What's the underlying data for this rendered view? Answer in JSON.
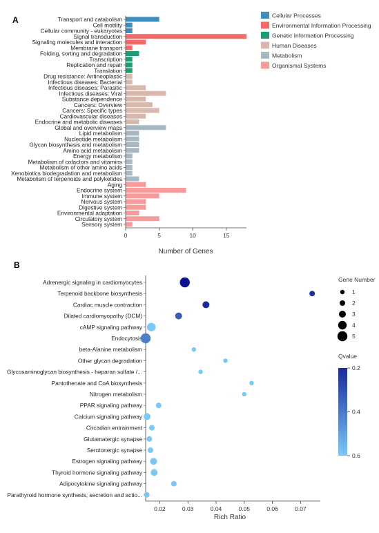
{
  "chart_data": [
    {
      "type": "bar",
      "panel_label": "A",
      "orientation": "horizontal",
      "xlabel": "Number of Genes",
      "xlim": [
        0,
        18
      ],
      "xticks": [
        0,
        5,
        10,
        15
      ],
      "legend": [
        {
          "name": "Cellular Processes",
          "color": "#3a8fbf"
        },
        {
          "name": "Environmental Information Processing",
          "color": "#f26a6a"
        },
        {
          "name": "Genetic Information Processing",
          "color": "#1a9e72"
        },
        {
          "name": "Human Diseases",
          "color": "#d8b8ad"
        },
        {
          "name": "Metabolism",
          "color": "#a7b8c2"
        },
        {
          "name": "Organismal Systems",
          "color": "#f79a9a"
        }
      ],
      "categories": [
        "Transport and catabolism",
        "Cell motility",
        "Cellular community - eukaryotes",
        "Signal transduction",
        "Signaling molecules and interaction",
        "Membrane transport",
        "Folding, sorting and degradation",
        "Transcription",
        "Replication and repair",
        "Translation",
        "Drug resistance: Antineoplastic",
        "Infectious diseases: Bacterial",
        "Infectious diseases: Parasitic",
        "Infectious diseases: Viral",
        "Substance dependence",
        "Cancers: Overview",
        "Cancers: Specific types",
        "Cardiovascular diseases",
        "Endocrine and metabolic diseases",
        "Global and overview maps",
        "Lipid metabolism",
        "Nucleotide metabolism",
        "Glycan biosynthesis and metabolism",
        "Amino acid metabolism",
        "Energy metabolism",
        "Metabolism of cofactors and vitamins",
        "Metabolism of other amino acids",
        "Xenobiotics biodegradation and metabolism",
        "Metabolism of terpenoids and polyketides",
        "Aging",
        "Endocrine system",
        "Immune system",
        "Nervous system",
        "Digestive system",
        "Environmental adaptation",
        "Circulatory system",
        "Sensory system"
      ],
      "values": [
        5,
        1,
        1,
        18,
        3,
        1,
        2,
        1,
        1,
        1,
        1,
        1,
        3,
        6,
        3,
        4,
        5,
        3,
        2,
        6,
        2,
        2,
        2,
        2,
        1,
        1,
        1,
        1,
        2,
        3,
        9,
        5,
        3,
        3,
        2,
        5,
        1
      ],
      "groups": [
        0,
        0,
        0,
        1,
        1,
        1,
        2,
        2,
        2,
        2,
        3,
        3,
        3,
        3,
        3,
        3,
        3,
        3,
        3,
        4,
        4,
        4,
        4,
        4,
        4,
        4,
        4,
        4,
        4,
        5,
        5,
        5,
        5,
        5,
        5,
        5,
        5
      ]
    },
    {
      "type": "scatter",
      "panel_label": "B",
      "xlabel": "Rich Ratio",
      "xlim": [
        0.015,
        0.077
      ],
      "xticks": [
        "0.02",
        "0.03",
        "0.04",
        "0.05",
        "0.06",
        "0.07"
      ],
      "size_legend_title": "Gene Number",
      "size_legend": [
        1,
        2,
        3,
        4,
        5
      ],
      "color_legend_title": "Qvalue",
      "color_ticks": [
        "0.2",
        "0.4",
        "0.6"
      ],
      "color_range": [
        0.2,
        0.6
      ],
      "color_low": "#1a2a9c",
      "color_high": "#7cc8f5",
      "categories": [
        "Adrenergic signaling in cardiomyocytes",
        "Terpenoid backbone biosynthesis",
        "Cardiac muscle contraction",
        "Dilated cardiomyopathy (DCM)",
        "cAMP signaling pathway",
        "Endocytosis",
        "beta-Alanine metabolism",
        "Other glycan degradation",
        "Glycosaminoglycan biosynthesis - heparan sulfate /...",
        "Pantothenate and CoA biosynthesis",
        "Nitrogen metabolism",
        "PPAR signaling pathway",
        "Calcium signaling pathway",
        "Circadian entrainment",
        "Glutamatergic synapse",
        "Serotonergic synapse",
        "Estrogen signaling pathway",
        "Thyroid hormone signaling pathway",
        "Adipocytokine signaling pathway",
        "Parathyroid hormone synthesis, secretion and actio..."
      ],
      "x": [
        0.0289,
        0.0741,
        0.0364,
        0.0267,
        0.017,
        0.015,
        0.0321,
        0.0433,
        0.0345,
        0.0526,
        0.05,
        0.0196,
        0.0155,
        0.0172,
        0.0163,
        0.0167,
        0.0178,
        0.018,
        0.025,
        0.0154
      ],
      "size": [
        5,
        2,
        3,
        3,
        4,
        5,
        1,
        1,
        1,
        1,
        1,
        2,
        3,
        2,
        2,
        2,
        3,
        3,
        2,
        2
      ],
      "qvalue": [
        0.14,
        0.21,
        0.2,
        0.33,
        0.6,
        0.41,
        0.6,
        0.6,
        0.6,
        0.6,
        0.6,
        0.6,
        0.6,
        0.6,
        0.6,
        0.6,
        0.6,
        0.6,
        0.6,
        0.6
      ]
    }
  ]
}
